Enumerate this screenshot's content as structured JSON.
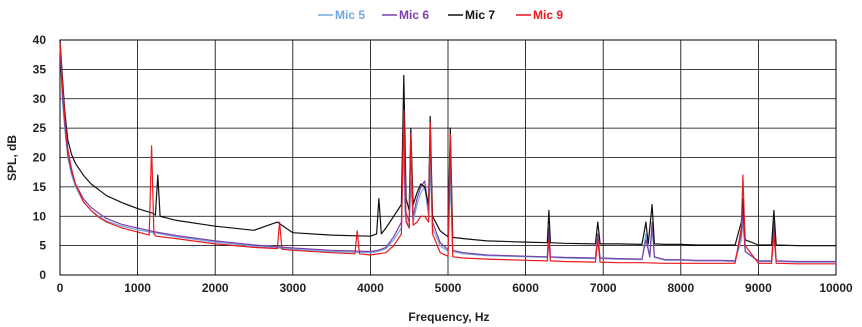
{
  "chart_data": {
    "type": "line",
    "title": "",
    "xlabel": "Frequency, Hz",
    "ylabel": "SPL, dB",
    "xlim": [
      0,
      10000
    ],
    "ylim": [
      0,
      40
    ],
    "x_ticks": [
      "0",
      "1000",
      "2000",
      "3000",
      "4000",
      "5000",
      "6000",
      "7000",
      "8000",
      "9000",
      "10000"
    ],
    "y_ticks": [
      "0",
      "5",
      "10",
      "15",
      "20",
      "25",
      "30",
      "35",
      "40"
    ],
    "grid": true,
    "legend_position": "top-center",
    "series": [
      {
        "name": "Mic 5",
        "color": "#6fa8dc",
        "x": [
          0,
          30,
          60,
          100,
          150,
          200,
          300,
          400,
          500,
          600,
          800,
          1000,
          1200,
          1500,
          2000,
          2500,
          3000,
          3500,
          4000,
          4100,
          4200,
          4300,
          4400,
          4430,
          4450,
          4500,
          4520,
          4550,
          4600,
          4650,
          4700,
          4750,
          4770,
          4800,
          4900,
          5000,
          5030,
          5060,
          5200,
          5500,
          6000,
          6280,
          6300,
          6320,
          6500,
          6900,
          6930,
          6960,
          7200,
          7500,
          7550,
          7600,
          7630,
          7660,
          7800,
          8000,
          8200,
          8500,
          8700,
          8780,
          8800,
          8830,
          9000,
          9170,
          9200,
          9230,
          9500,
          9800,
          10000
        ],
        "y": [
          40,
          30,
          25,
          20,
          17,
          15,
          12.5,
          11,
          10,
          9.2,
          8.3,
          7.7,
          7.2,
          6.5,
          5.6,
          4.9,
          4.4,
          4,
          3.8,
          4,
          4.5,
          6,
          8,
          22,
          10,
          8,
          16,
          9,
          12,
          14,
          15,
          10,
          18,
          8,
          5,
          4,
          16,
          4,
          3.6,
          3.3,
          3.1,
          3,
          7,
          3,
          2.9,
          2.8,
          6,
          2.8,
          2.7,
          2.6,
          7,
          3,
          8,
          3,
          2.5,
          2.5,
          2.4,
          2.4,
          2.3,
          6,
          9,
          4,
          2.3,
          2.3,
          8,
          2.3,
          2.2,
          2.2,
          2.2
        ]
      },
      {
        "name": "Mic 6",
        "color": "#7e3fa8",
        "x": [
          0,
          30,
          60,
          100,
          150,
          200,
          300,
          400,
          500,
          600,
          800,
          1000,
          1200,
          1500,
          2000,
          2500,
          3000,
          3500,
          4000,
          4100,
          4200,
          4300,
          4400,
          4430,
          4450,
          4500,
          4520,
          4550,
          4600,
          4650,
          4700,
          4750,
          4770,
          4800,
          4900,
          5000,
          5030,
          5060,
          5200,
          5500,
          6000,
          6280,
          6300,
          6320,
          6500,
          6900,
          6930,
          6960,
          7200,
          7500,
          7550,
          7600,
          7630,
          7660,
          7800,
          8000,
          8200,
          8500,
          8700,
          8780,
          8800,
          8830,
          9000,
          9170,
          9200,
          9230,
          9500,
          9800,
          10000
        ],
        "y": [
          39,
          31,
          26,
          20.5,
          17.5,
          15.5,
          13,
          11.5,
          10.5,
          9.6,
          8.6,
          8,
          7.4,
          6.7,
          5.8,
          5.1,
          4.6,
          4.2,
          4,
          4.2,
          4.7,
          6.5,
          9,
          28,
          11,
          9,
          22,
          10,
          13,
          15,
          16,
          11,
          23,
          9,
          5.5,
          4.3,
          21,
          4.2,
          3.8,
          3.4,
          3.2,
          3.1,
          8,
          3.1,
          3,
          2.9,
          7,
          2.9,
          2.8,
          2.7,
          6,
          3.1,
          9,
          3.1,
          2.6,
          2.6,
          2.5,
          2.5,
          2.4,
          7,
          11,
          4,
          2.4,
          2.4,
          9,
          2.4,
          2.3,
          2.3,
          2.3
        ]
      },
      {
        "name": "Mic 7",
        "color": "#111111",
        "x": [
          0,
          30,
          60,
          100,
          150,
          200,
          300,
          400,
          500,
          600,
          800,
          1000,
          1200,
          1230,
          1260,
          1290,
          1500,
          2000,
          2500,
          2800,
          3000,
          3500,
          4000,
          4080,
          4110,
          4140,
          4200,
          4300,
          4400,
          4430,
          4460,
          4500,
          4520,
          4550,
          4600,
          4650,
          4700,
          4750,
          4770,
          4800,
          4900,
          5000,
          5030,
          5060,
          5200,
          5500,
          6000,
          6280,
          6300,
          6320,
          6500,
          6900,
          6930,
          6960,
          7200,
          7500,
          7550,
          7580,
          7630,
          7660,
          7800,
          8000,
          8200,
          8500,
          8700,
          8780,
          8800,
          8830,
          9000,
          9170,
          9200,
          9230,
          9500,
          9800,
          10000
        ],
        "y": [
          40,
          34,
          28,
          23,
          20.5,
          19,
          17,
          15.5,
          14.5,
          13.5,
          12.3,
          11.3,
          10.5,
          10.2,
          17,
          10,
          9.3,
          8.3,
          7.6,
          9,
          7.2,
          6.8,
          6.6,
          7,
          13,
          7,
          8,
          10,
          12,
          34,
          13,
          11,
          25,
          12,
          14,
          15.5,
          15,
          12,
          27,
          10,
          7.5,
          6.5,
          25,
          6.4,
          6.2,
          5.8,
          5.6,
          5.5,
          11,
          5.5,
          5.4,
          5.3,
          9,
          5.3,
          5.3,
          5.2,
          9,
          5.3,
          12,
          5.3,
          5.2,
          5.2,
          5.1,
          5.1,
          5.1,
          9,
          13,
          6,
          5.1,
          5.1,
          11,
          5.1,
          5,
          5,
          5
        ]
      },
      {
        "name": "Mic 9",
        "color": "#e8191f",
        "x": [
          0,
          30,
          60,
          100,
          150,
          200,
          300,
          400,
          500,
          600,
          800,
          1000,
          1150,
          1180,
          1210,
          1240,
          1500,
          2000,
          2500,
          2800,
          2830,
          2860,
          3000,
          3500,
          3800,
          3830,
          3860,
          4000,
          4200,
          4300,
          4400,
          4430,
          4460,
          4500,
          4520,
          4550,
          4600,
          4650,
          4700,
          4750,
          4770,
          4800,
          4900,
          5000,
          5030,
          5060,
          5200,
          5500,
          6000,
          6280,
          6300,
          6320,
          6500,
          6900,
          6930,
          6960,
          7200,
          7500,
          7800,
          8000,
          8200,
          8500,
          8700,
          8780,
          8800,
          8830,
          9000,
          9170,
          9200,
          9230,
          9500,
          9800,
          10000
        ],
        "y": [
          39.5,
          33,
          27,
          21.5,
          18,
          15.5,
          12.5,
          11,
          9.8,
          9,
          8,
          7.3,
          6.8,
          22,
          7,
          6.6,
          6.2,
          5.3,
          4.7,
          4.5,
          9,
          4.4,
          4.2,
          3.8,
          3.6,
          7.5,
          3.6,
          3.4,
          3.8,
          5,
          7,
          28,
          9,
          8,
          24,
          8.5,
          9,
          10,
          10,
          9,
          26,
          7,
          3.8,
          3.2,
          24,
          3.1,
          2.9,
          2.7,
          2.5,
          2.4,
          6,
          2.4,
          2.3,
          2.2,
          6,
          2.2,
          2.1,
          2.1,
          2,
          2,
          2,
          2,
          2,
          8,
          17,
          5,
          2,
          2,
          7,
          2,
          1.9,
          1.9,
          1.9
        ]
      }
    ]
  }
}
